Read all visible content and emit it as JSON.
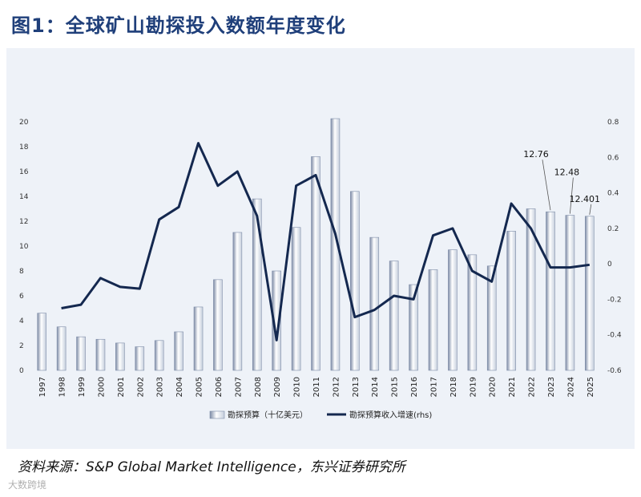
{
  "header": {
    "title": "图1：全球矿山勘探投入数额年度变化"
  },
  "source": {
    "text": "资料来源：S&P Global Market Intelligence，东兴证券研究所"
  },
  "watermark": {
    "text": "大数跨境"
  },
  "chart_data": {
    "type": "bar",
    "categories": [
      "1997",
      "1998",
      "1999",
      "2000",
      "2001",
      "2002",
      "2003",
      "2004",
      "2005",
      "2006",
      "2007",
      "2008",
      "2009",
      "2010",
      "2011",
      "2012",
      "2013",
      "2014",
      "2015",
      "2016",
      "2017",
      "2018",
      "2019",
      "2020",
      "2021",
      "2022",
      "2023",
      "2024",
      "2025"
    ],
    "series": [
      {
        "name": "勘探预算（十亿美元）",
        "type": "bar",
        "axis": "left",
        "values": [
          4.6,
          3.5,
          2.7,
          2.5,
          2.2,
          1.9,
          2.4,
          3.1,
          5.1,
          7.3,
          11.1,
          13.8,
          8.0,
          11.5,
          17.2,
          20.5,
          14.4,
          10.7,
          8.8,
          6.9,
          8.1,
          9.7,
          9.3,
          8.4,
          11.2,
          13.0,
          12.76,
          12.48,
          12.401
        ]
      },
      {
        "name": "勘探预算收入增速(rhs)",
        "type": "line",
        "axis": "right",
        "values": [
          null,
          -0.25,
          -0.23,
          -0.08,
          -0.13,
          -0.14,
          0.25,
          0.32,
          0.68,
          0.44,
          0.52,
          0.27,
          -0.43,
          0.44,
          0.5,
          0.17,
          -0.3,
          -0.26,
          -0.18,
          -0.2,
          0.16,
          0.2,
          -0.04,
          -0.1,
          0.34,
          0.2,
          -0.02,
          -0.02,
          -0.005
        ]
      }
    ],
    "y_left": {
      "ticks": [
        "0",
        "2",
        "4",
        "6",
        "8",
        "10",
        "12",
        "14",
        "16",
        "18",
        "20"
      ],
      "ylim": [
        0,
        20
      ]
    },
    "y_right": {
      "ticks": [
        "-0.6",
        "-0.4",
        "-0.2",
        "0",
        "0.2",
        "0.4",
        "0.6",
        "0.8"
      ],
      "ylim": [
        -0.6,
        0.8
      ]
    },
    "annotations": [
      {
        "label": "12.76",
        "category": "2023"
      },
      {
        "label": "12.48",
        "category": "2024"
      },
      {
        "label": "12.401",
        "category": "2025"
      }
    ],
    "legend_position": "bottom-center",
    "grid": false
  },
  "colors": {
    "line": "#14284f",
    "bar_dark": "#8694ad",
    "bar_light": "#ffffff",
    "title": "#1f3f7a"
  }
}
